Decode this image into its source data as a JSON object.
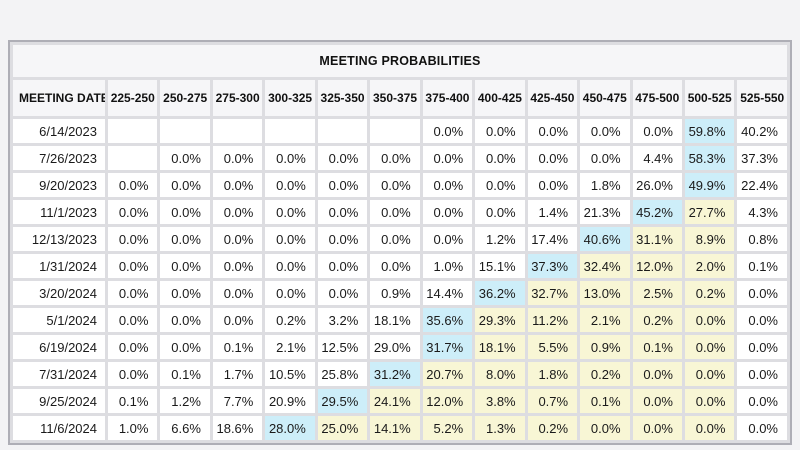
{
  "table": {
    "title": "MEETING PROBABILITIES",
    "date_column_label": "MEETING DATE",
    "columns": [
      "225-250",
      "250-275",
      "275-300",
      "300-325",
      "325-350",
      "350-375",
      "375-400",
      "400-425",
      "425-450",
      "450-475",
      "475-500",
      "500-525",
      "525-550"
    ],
    "rows": [
      {
        "date": "6/14/2023",
        "values": [
          "",
          "",
          "",
          "",
          "",
          "",
          "0.0%",
          "0.0%",
          "0.0%",
          "0.0%",
          "0.0%",
          "59.8%",
          "40.2%"
        ],
        "highlights": [
          "",
          "",
          "",
          "",
          "",
          "",
          "",
          "",
          "",
          "",
          "",
          "b",
          ""
        ]
      },
      {
        "date": "7/26/2023",
        "values": [
          "",
          "0.0%",
          "0.0%",
          "0.0%",
          "0.0%",
          "0.0%",
          "0.0%",
          "0.0%",
          "0.0%",
          "0.0%",
          "4.4%",
          "58.3%",
          "37.3%"
        ],
        "highlights": [
          "",
          "",
          "",
          "",
          "",
          "",
          "",
          "",
          "",
          "",
          "",
          "b",
          ""
        ]
      },
      {
        "date": "9/20/2023",
        "values": [
          "0.0%",
          "0.0%",
          "0.0%",
          "0.0%",
          "0.0%",
          "0.0%",
          "0.0%",
          "0.0%",
          "0.0%",
          "1.8%",
          "26.0%",
          "49.9%",
          "22.4%"
        ],
        "highlights": [
          "",
          "",
          "",
          "",
          "",
          "",
          "",
          "",
          "",
          "",
          "",
          "b",
          ""
        ]
      },
      {
        "date": "11/1/2023",
        "values": [
          "0.0%",
          "0.0%",
          "0.0%",
          "0.0%",
          "0.0%",
          "0.0%",
          "0.0%",
          "0.0%",
          "1.4%",
          "21.3%",
          "45.2%",
          "27.7%",
          "4.3%"
        ],
        "highlights": [
          "",
          "",
          "",
          "",
          "",
          "",
          "",
          "",
          "",
          "",
          "b",
          "y",
          ""
        ]
      },
      {
        "date": "12/13/2023",
        "values": [
          "0.0%",
          "0.0%",
          "0.0%",
          "0.0%",
          "0.0%",
          "0.0%",
          "0.0%",
          "1.2%",
          "17.4%",
          "40.6%",
          "31.1%",
          "8.9%",
          "0.8%"
        ],
        "highlights": [
          "",
          "",
          "",
          "",
          "",
          "",
          "",
          "",
          "",
          "b",
          "y",
          "y",
          ""
        ]
      },
      {
        "date": "1/31/2024",
        "values": [
          "0.0%",
          "0.0%",
          "0.0%",
          "0.0%",
          "0.0%",
          "0.0%",
          "1.0%",
          "15.1%",
          "37.3%",
          "32.4%",
          "12.0%",
          "2.0%",
          "0.1%"
        ],
        "highlights": [
          "",
          "",
          "",
          "",
          "",
          "",
          "",
          "",
          "b",
          "y",
          "y",
          "y",
          ""
        ]
      },
      {
        "date": "3/20/2024",
        "values": [
          "0.0%",
          "0.0%",
          "0.0%",
          "0.0%",
          "0.0%",
          "0.9%",
          "14.4%",
          "36.2%",
          "32.7%",
          "13.0%",
          "2.5%",
          "0.2%",
          "0.0%"
        ],
        "highlights": [
          "",
          "",
          "",
          "",
          "",
          "",
          "",
          "b",
          "y",
          "y",
          "y",
          "y",
          ""
        ]
      },
      {
        "date": "5/1/2024",
        "values": [
          "0.0%",
          "0.0%",
          "0.0%",
          "0.2%",
          "3.2%",
          "18.1%",
          "35.6%",
          "29.3%",
          "11.2%",
          "2.1%",
          "0.2%",
          "0.0%",
          "0.0%"
        ],
        "highlights": [
          "",
          "",
          "",
          "",
          "",
          "",
          "b",
          "y",
          "y",
          "y",
          "y",
          "y",
          ""
        ]
      },
      {
        "date": "6/19/2024",
        "values": [
          "0.0%",
          "0.0%",
          "0.1%",
          "2.1%",
          "12.5%",
          "29.0%",
          "31.7%",
          "18.1%",
          "5.5%",
          "0.9%",
          "0.1%",
          "0.0%",
          "0.0%"
        ],
        "highlights": [
          "",
          "",
          "",
          "",
          "",
          "",
          "b",
          "y",
          "y",
          "y",
          "y",
          "y",
          ""
        ]
      },
      {
        "date": "7/31/2024",
        "values": [
          "0.0%",
          "0.1%",
          "1.7%",
          "10.5%",
          "25.8%",
          "31.2%",
          "20.7%",
          "8.0%",
          "1.8%",
          "0.2%",
          "0.0%",
          "0.0%",
          "0.0%"
        ],
        "highlights": [
          "",
          "",
          "",
          "",
          "",
          "b",
          "y",
          "y",
          "y",
          "y",
          "y",
          "y",
          ""
        ]
      },
      {
        "date": "9/25/2024",
        "values": [
          "0.1%",
          "1.2%",
          "7.7%",
          "20.9%",
          "29.5%",
          "24.1%",
          "12.0%",
          "3.8%",
          "0.7%",
          "0.1%",
          "0.0%",
          "0.0%",
          "0.0%"
        ],
        "highlights": [
          "",
          "",
          "",
          "",
          "b",
          "y",
          "y",
          "y",
          "y",
          "y",
          "y",
          "y",
          ""
        ]
      },
      {
        "date": "11/6/2024",
        "values": [
          "1.0%",
          "6.6%",
          "18.6%",
          "28.0%",
          "25.0%",
          "14.1%",
          "5.2%",
          "1.3%",
          "0.2%",
          "0.0%",
          "0.0%",
          "0.0%",
          "0.0%"
        ],
        "highlights": [
          "",
          "",
          "",
          "b",
          "y",
          "y",
          "y",
          "y",
          "y",
          "y",
          "y",
          "y",
          ""
        ]
      }
    ]
  },
  "colors": {
    "highlight_blue": "#cdeef9",
    "highlight_yellow": "#f8f6d5",
    "cell_white": "#ffffff",
    "header_bg": "#f6f6f8",
    "grid_gap": "#dddde1",
    "outer_border": "#aeaeb6",
    "page_bg": "#f3f3f5"
  },
  "chart_data": {
    "type": "table",
    "title": "MEETING PROBABILITIES",
    "row_label": "MEETING DATE",
    "columns": [
      "225-250",
      "250-275",
      "275-300",
      "300-325",
      "325-350",
      "350-375",
      "375-400",
      "400-425",
      "425-450",
      "450-475",
      "475-500",
      "500-525",
      "525-550"
    ],
    "unit": "percent",
    "rows": [
      {
        "date": "6/14/2023",
        "values_pct": [
          null,
          null,
          null,
          null,
          null,
          null,
          0.0,
          0.0,
          0.0,
          0.0,
          0.0,
          59.8,
          40.2
        ]
      },
      {
        "date": "7/26/2023",
        "values_pct": [
          null,
          0.0,
          0.0,
          0.0,
          0.0,
          0.0,
          0.0,
          0.0,
          0.0,
          0.0,
          4.4,
          58.3,
          37.3
        ]
      },
      {
        "date": "9/20/2023",
        "values_pct": [
          0.0,
          0.0,
          0.0,
          0.0,
          0.0,
          0.0,
          0.0,
          0.0,
          0.0,
          1.8,
          26.0,
          49.9,
          22.4
        ]
      },
      {
        "date": "11/1/2023",
        "values_pct": [
          0.0,
          0.0,
          0.0,
          0.0,
          0.0,
          0.0,
          0.0,
          0.0,
          1.4,
          21.3,
          45.2,
          27.7,
          4.3
        ]
      },
      {
        "date": "12/13/2023",
        "values_pct": [
          0.0,
          0.0,
          0.0,
          0.0,
          0.0,
          0.0,
          0.0,
          1.2,
          17.4,
          40.6,
          31.1,
          8.9,
          0.8
        ]
      },
      {
        "date": "1/31/2024",
        "values_pct": [
          0.0,
          0.0,
          0.0,
          0.0,
          0.0,
          0.0,
          1.0,
          15.1,
          37.3,
          32.4,
          12.0,
          2.0,
          0.1
        ]
      },
      {
        "date": "3/20/2024",
        "values_pct": [
          0.0,
          0.0,
          0.0,
          0.0,
          0.0,
          0.9,
          14.4,
          36.2,
          32.7,
          13.0,
          2.5,
          0.2,
          0.0
        ]
      },
      {
        "date": "5/1/2024",
        "values_pct": [
          0.0,
          0.0,
          0.0,
          0.2,
          3.2,
          18.1,
          35.6,
          29.3,
          11.2,
          2.1,
          0.2,
          0.0,
          0.0
        ]
      },
      {
        "date": "6/19/2024",
        "values_pct": [
          0.0,
          0.0,
          0.1,
          2.1,
          12.5,
          29.0,
          31.7,
          18.1,
          5.5,
          0.9,
          0.1,
          0.0,
          0.0
        ]
      },
      {
        "date": "7/31/2024",
        "values_pct": [
          0.0,
          0.1,
          1.7,
          10.5,
          25.8,
          31.2,
          20.7,
          8.0,
          1.8,
          0.2,
          0.0,
          0.0,
          0.0
        ]
      },
      {
        "date": "9/25/2024",
        "values_pct": [
          0.1,
          1.2,
          7.7,
          20.9,
          29.5,
          24.1,
          12.0,
          3.8,
          0.7,
          0.1,
          0.0,
          0.0,
          0.0
        ]
      },
      {
        "date": "11/6/2024",
        "values_pct": [
          1.0,
          6.6,
          18.6,
          28.0,
          25.0,
          14.1,
          5.2,
          1.3,
          0.2,
          0.0,
          0.0,
          0.0,
          0.0
        ]
      }
    ],
    "highlighted_cells": {
      "blue_max_per_row": [
        "500-525",
        "500-525",
        "500-525",
        "475-500",
        "450-475",
        "425-450",
        "400-425",
        "375-400",
        "375-400",
        "350-375",
        "325-350",
        "300-325"
      ],
      "yellow_range": "cells right of the blue cell through column 500-525"
    }
  }
}
